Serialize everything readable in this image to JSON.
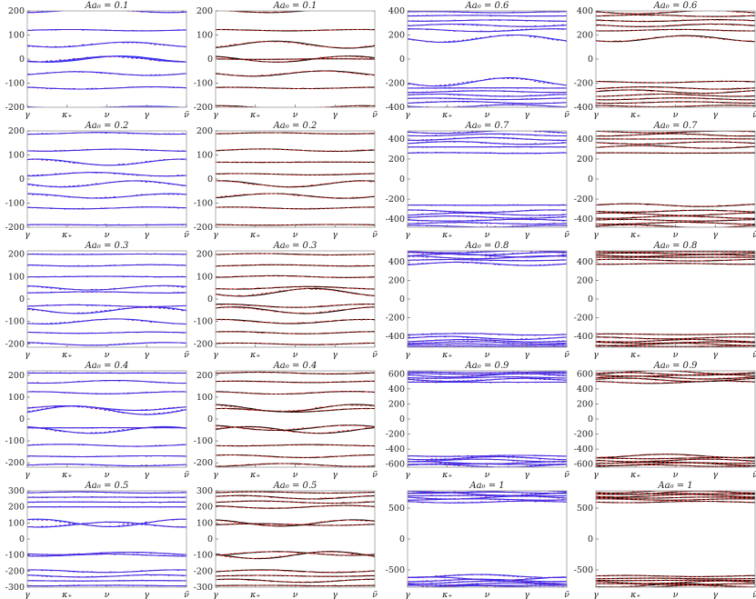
{
  "figure": {
    "x_tick_labels": [
      "γ",
      "κ₊",
      "ν",
      "γ",
      "ν̃"
    ],
    "colors": {
      "blue": "#1f2eff",
      "black": "#000000",
      "red": "#e8302a",
      "purple": "#7a1fb0",
      "dark_red": "#5a0000"
    }
  },
  "chart_data": [
    {
      "type": "line",
      "title": "Aa₀ = 0.1",
      "ylim": [
        -200,
        200
      ],
      "yticks": [
        -200,
        -100,
        0,
        100,
        200
      ],
      "style": "blue",
      "bands": [
        -200,
        -120,
        -60,
        0,
        0,
        60,
        120,
        200
      ],
      "xtick_labels": [
        "γ",
        "κ₊",
        "ν",
        "γ",
        "ν̃"
      ]
    },
    {
      "type": "line",
      "title": "Aa₀ = 0.1",
      "ylim": [
        -200,
        200
      ],
      "yticks": [
        -200,
        -100,
        0,
        100,
        200
      ],
      "style": "black",
      "bands": [
        -200,
        -120,
        -60,
        0,
        0,
        60,
        120,
        200
      ],
      "xtick_labels": [
        "γ",
        "κ₊",
        "ν",
        "γ",
        "ν̃"
      ]
    },
    {
      "type": "line",
      "title": "Aa₀ = 0.6",
      "ylim": [
        -400,
        400
      ],
      "yticks": [
        -400,
        -200,
        0,
        200,
        400
      ],
      "style": "blue",
      "bands": [
        -390,
        -360,
        -330,
        -300,
        -270,
        -240,
        -190,
        170,
        240,
        280,
        320,
        360,
        390
      ],
      "xtick_labels": [
        "γ",
        "κ₊",
        "ν",
        "γ",
        "ν̃"
      ]
    },
    {
      "type": "line",
      "title": "Aa₀ = 0.6",
      "ylim": [
        -400,
        400
      ],
      "yticks": [
        -400,
        -200,
        0,
        200,
        400
      ],
      "style": "black",
      "bands": [
        -390,
        -360,
        -330,
        -300,
        -270,
        -240,
        -190,
        170,
        240,
        280,
        320,
        360,
        390
      ],
      "xtick_labels": [
        "γ",
        "κ₊",
        "ν",
        "γ",
        "ν̃"
      ]
    },
    {
      "type": "line",
      "title": "Aa₀ = 0.2",
      "ylim": [
        -200,
        200
      ],
      "yticks": [
        -200,
        -100,
        0,
        100,
        200
      ],
      "style": "blue",
      "bands": [
        -190,
        -120,
        -70,
        -20,
        20,
        70,
        120,
        190
      ],
      "xtick_labels": [
        "γ",
        "κ₊",
        "ν",
        "γ",
        "ν̃"
      ]
    },
    {
      "type": "line",
      "title": "Aa₀ = 0.2",
      "ylim": [
        -200,
        200
      ],
      "yticks": [
        -200,
        -100,
        0,
        100,
        200
      ],
      "style": "black",
      "bands": [
        -190,
        -120,
        -70,
        -20,
        20,
        70,
        120,
        190
      ],
      "xtick_labels": [
        "γ",
        "κ₊",
        "ν",
        "γ",
        "ν̃"
      ]
    },
    {
      "type": "line",
      "title": "Aa₀ = 0.7",
      "ylim": [
        -480,
        480
      ],
      "yticks": [
        -400,
        -200,
        0,
        200,
        400
      ],
      "style": "blue",
      "bands": [
        -470,
        -440,
        -410,
        -380,
        -350,
        -320,
        -260,
        260,
        320,
        360,
        400,
        440,
        470
      ],
      "xtick_labels": [
        "γ",
        "κ₊",
        "ν",
        "γ",
        "ν̃"
      ]
    },
    {
      "type": "line",
      "title": "Aa₀ = 0.7",
      "ylim": [
        -480,
        480
      ],
      "yticks": [
        -400,
        -200,
        0,
        200,
        400
      ],
      "style": "black",
      "bands": [
        -470,
        -440,
        -410,
        -380,
        -350,
        -320,
        -260,
        260,
        320,
        360,
        400,
        440,
        470
      ],
      "xtick_labels": [
        "γ",
        "κ₊",
        "ν",
        "γ",
        "ν̃"
      ]
    },
    {
      "type": "line",
      "title": "Aa₀ = 0.3",
      "ylim": [
        -215,
        215
      ],
      "yticks": [
        -200,
        -100,
        0,
        100,
        200
      ],
      "style": "blue",
      "bands": [
        -200,
        -150,
        -100,
        -50,
        -30,
        30,
        50,
        100,
        150,
        200
      ],
      "xtick_labels": [
        "γ",
        "κ₊",
        "ν",
        "γ",
        "ν̃"
      ]
    },
    {
      "type": "line",
      "title": "Aa₀ = 0.3",
      "ylim": [
        -215,
        215
      ],
      "yticks": [
        -200,
        -100,
        0,
        100,
        200
      ],
      "style": "black",
      "bands": [
        -200,
        -150,
        -100,
        -50,
        -30,
        30,
        50,
        100,
        150,
        200
      ],
      "xtick_labels": [
        "γ",
        "κ₊",
        "ν",
        "γ",
        "ν̃"
      ]
    },
    {
      "type": "line",
      "title": "Aa₀ = 0.8",
      "ylim": [
        -520,
        520
      ],
      "yticks": [
        -400,
        -200,
        0,
        200,
        400
      ],
      "style": "blue",
      "bands": [
        -510,
        -490,
        -470,
        -450,
        -420,
        -380,
        380,
        420,
        450,
        470,
        490,
        510
      ],
      "xtick_labels": [
        "γ",
        "κ₊",
        "ν",
        "γ",
        "ν̃"
      ]
    },
    {
      "type": "line",
      "title": "Aa₀ = 0.8",
      "ylim": [
        -520,
        520
      ],
      "yticks": [
        -400,
        -200,
        0,
        200,
        400
      ],
      "style": "black",
      "bands": [
        -510,
        -490,
        -470,
        -450,
        -420,
        -380,
        380,
        420,
        450,
        470,
        490,
        510
      ],
      "xtick_labels": [
        "γ",
        "κ₊",
        "ν",
        "γ",
        "ν̃"
      ]
    },
    {
      "type": "line",
      "title": "Aa₀ = 0.4",
      "ylim": [
        -220,
        220
      ],
      "yticks": [
        -200,
        -100,
        0,
        100,
        200
      ],
      "style": "blue",
      "bands": [
        -210,
        -170,
        -120,
        -50,
        -40,
        40,
        50,
        120,
        170,
        210
      ],
      "xtick_labels": [
        "γ",
        "κ₊",
        "ν",
        "γ",
        "ν̃"
      ]
    },
    {
      "type": "line",
      "title": "Aa₀ = 0.4",
      "ylim": [
        -220,
        220
      ],
      "yticks": [
        -200,
        -100,
        0,
        100,
        200
      ],
      "style": "black",
      "bands": [
        -210,
        -170,
        -120,
        -50,
        -40,
        40,
        50,
        120,
        170,
        210
      ],
      "xtick_labels": [
        "γ",
        "κ₊",
        "ν",
        "γ",
        "ν̃"
      ]
    },
    {
      "type": "line",
      "title": "Aa₀ = 0.9",
      "ylim": [
        -640,
        640
      ],
      "yticks": [
        -600,
        -400,
        -200,
        0,
        200,
        400,
        600
      ],
      "style": "blue",
      "bands": [
        -620,
        -600,
        -580,
        -550,
        -520,
        -490,
        490,
        520,
        550,
        580,
        600,
        620
      ],
      "xtick_labels": [
        "γ",
        "κ₊",
        "ν",
        "γ",
        "ν̃"
      ]
    },
    {
      "type": "line",
      "title": "Aa₀ = 0.9",
      "ylim": [
        -640,
        640
      ],
      "yticks": [
        -600,
        -400,
        -200,
        0,
        200,
        400,
        600
      ],
      "style": "black",
      "bands": [
        -620,
        -600,
        -580,
        -550,
        -520,
        -490,
        490,
        520,
        550,
        580,
        600,
        620
      ],
      "xtick_labels": [
        "γ",
        "κ₊",
        "ν",
        "γ",
        "ν̃"
      ]
    },
    {
      "type": "line",
      "title": "Aa₀ = 0.5",
      "ylim": [
        -300,
        300
      ],
      "yticks": [
        -300,
        -200,
        -100,
        0,
        100,
        200,
        300
      ],
      "style": "blue",
      "bands": [
        -290,
        -260,
        -230,
        -200,
        -100,
        -90,
        90,
        100,
        200,
        230,
        260,
        290
      ],
      "xtick_labels": [
        "γ",
        "κ₊",
        "ν",
        "γ",
        "ν̃"
      ]
    },
    {
      "type": "line",
      "title": "Aa₀ = 0.5",
      "ylim": [
        -300,
        300
      ],
      "yticks": [
        -300,
        -200,
        -100,
        0,
        100,
        200,
        300
      ],
      "style": "black",
      "bands": [
        -290,
        -260,
        -230,
        -200,
        -100,
        -90,
        90,
        100,
        200,
        230,
        260,
        290
      ],
      "xtick_labels": [
        "γ",
        "κ₊",
        "ν",
        "γ",
        "ν̃"
      ]
    },
    {
      "type": "line",
      "title": "Aa₀ = 1",
      "ylim": [
        -780,
        780
      ],
      "yticks": [
        -500,
        0,
        500
      ],
      "style": "blue",
      "bands": [
        -770,
        -750,
        -730,
        -700,
        -670,
        -640,
        -600,
        600,
        640,
        670,
        700,
        730,
        750,
        770
      ],
      "xtick_labels": [
        "γ",
        "κ₊",
        "ν",
        "γ",
        "ν̃"
      ]
    },
    {
      "type": "line",
      "title": "Aa₀ = 1",
      "ylim": [
        -780,
        780
      ],
      "yticks": [
        -500,
        0,
        500
      ],
      "style": "black",
      "bands": [
        -770,
        -750,
        -730,
        -700,
        -670,
        -640,
        -600,
        600,
        640,
        670,
        700,
        730,
        750,
        770
      ],
      "xtick_labels": [
        "γ",
        "κ₊",
        "ν",
        "γ",
        "ν̃"
      ]
    }
  ]
}
